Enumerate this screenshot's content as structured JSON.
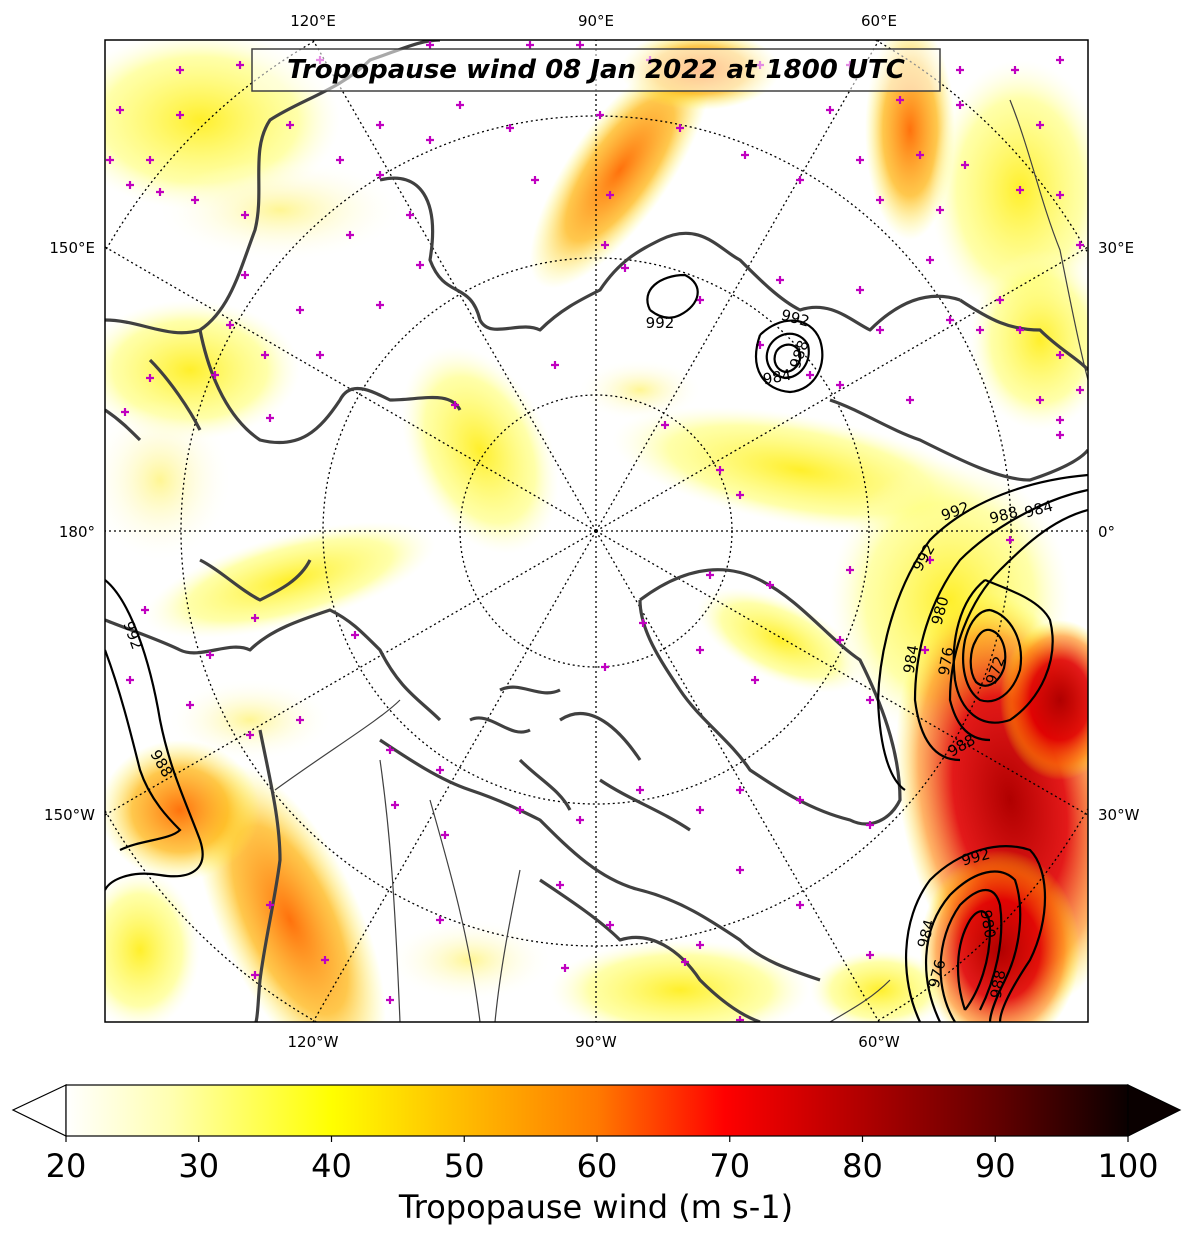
{
  "title": "Tropopause wind 08 Jan 2022 at 1800 UTC",
  "meridian_labels_top": [
    "120°E",
    "90°E",
    "60°E"
  ],
  "meridian_labels_bottom": [
    "120°W",
    "90°W",
    "60°W"
  ],
  "meridian_labels_left": [
    "150°E",
    "180°",
    "150°W"
  ],
  "meridian_labels_right": [
    "30°E",
    "0°",
    "30°W"
  ],
  "colorbar": {
    "label": "Tropopause wind (m s-1)",
    "min": 20,
    "max": 100,
    "ticks": [
      20,
      30,
      40,
      50,
      60,
      70,
      80,
      90,
      100
    ],
    "extend": "both",
    "colormap": "hot_r"
  },
  "pressure_contours": {
    "units": "hPa",
    "labels": [
      {
        "value": "992",
        "id": "c1"
      },
      {
        "value": "992",
        "id": "c2"
      },
      {
        "value": "984",
        "id": "c3"
      },
      {
        "value": "988",
        "id": "c4"
      },
      {
        "value": "992",
        "id": "c5"
      },
      {
        "value": "988",
        "id": "c6"
      },
      {
        "value": "984",
        "id": "c7"
      },
      {
        "value": "992",
        "id": "c8"
      },
      {
        "value": "980",
        "id": "c9"
      },
      {
        "value": "976",
        "id": "c10"
      },
      {
        "value": "972",
        "id": "c11"
      },
      {
        "value": "984",
        "id": "c12"
      },
      {
        "value": "988",
        "id": "c13"
      },
      {
        "value": "992",
        "id": "c14"
      },
      {
        "value": "980",
        "id": "c15"
      },
      {
        "value": "984",
        "id": "c16"
      },
      {
        "value": "976",
        "id": "c17"
      },
      {
        "value": "988",
        "id": "c18"
      },
      {
        "value": "992",
        "id": "c19"
      },
      {
        "value": "988",
        "id": "c20"
      }
    ]
  },
  "colors": {
    "coastline": "#404040",
    "station_marker": "#c000c0",
    "contour": "#000000"
  }
}
